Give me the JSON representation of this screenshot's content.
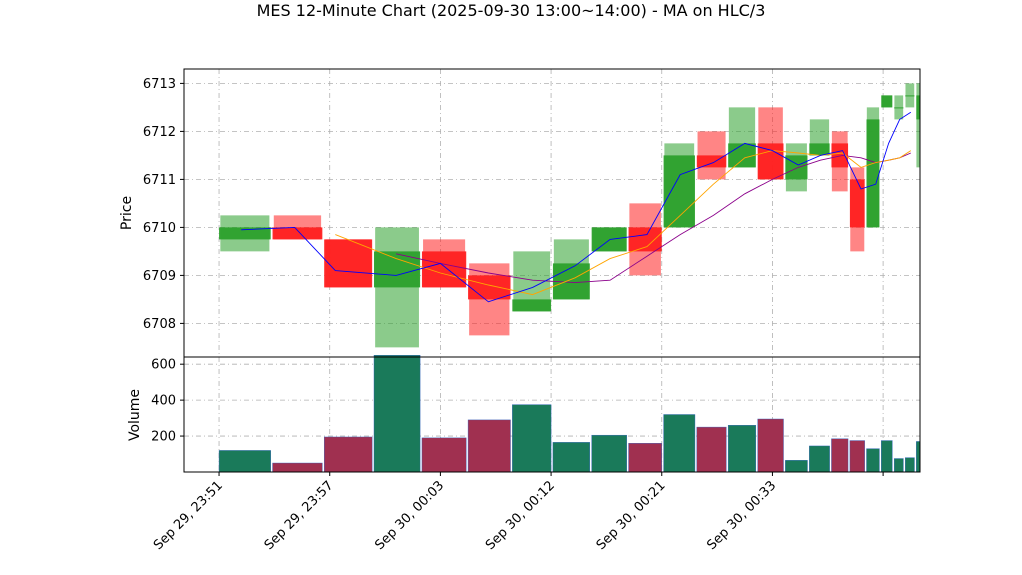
{
  "chart_data": {
    "type": "candlestick",
    "title": "MES 12-Minute Chart (2025-09-30 13:00~14:00) - MA on HLC/3",
    "ylabel_price": "Price",
    "ylabel_volume": "Volume",
    "price_ylim": [
      6707.3,
      6713.3
    ],
    "volume_ylim": [
      0,
      640
    ],
    "price_yticks": [
      6708,
      6709,
      6710,
      6711,
      6712,
      6713
    ],
    "volume_yticks": [
      200,
      400,
      600
    ],
    "xticks": [
      {
        "label": "Sep 29, 23:51",
        "x": 0
      },
      {
        "label": "Sep 29, 23:57",
        "x": 6
      },
      {
        "label": "Sep 30, 00:03",
        "x": 12
      },
      {
        "label": "Sep 30, 00:12",
        "x": 18
      },
      {
        "label": "Sep 30, 00:21",
        "x": 24
      },
      {
        "label": "Sep 30, 00:33",
        "x": 30
      },
      {
        "label": "",
        "x": 36
      }
    ],
    "xlim": [
      -1.9,
      38
    ],
    "bar_width": 1,
    "grid": true,
    "up_color": "#2ca02c",
    "down_color": "#ff2020",
    "volume_up_color": "#1a7a5a",
    "volume_down_color": "#a03050",
    "ma_fast_color": "#0000ff",
    "ma_mid_color": "#ffa500",
    "ma_slow_color": "#8b008b",
    "candles": [
      {
        "x": 0,
        "w": 2.8,
        "open": 6709.75,
        "high": 6710.25,
        "low": 6709.5,
        "close": 6710.0,
        "volume": 120
      },
      {
        "x": 2.9,
        "w": 2.7,
        "open": 6710.0,
        "high": 6710.25,
        "low": 6709.75,
        "close": 6709.75,
        "volume": 50
      },
      {
        "x": 5.7,
        "w": 2.6,
        "open": 6709.75,
        "high": 6709.75,
        "low": 6708.75,
        "close": 6708.75,
        "volume": 195
      },
      {
        "x": 8.4,
        "w": 2.5,
        "open": 6708.75,
        "high": 6710.0,
        "low": 6707.5,
        "close": 6709.5,
        "volume": 650
      },
      {
        "x": 11.0,
        "w": 2.4,
        "open": 6709.5,
        "high": 6709.75,
        "low": 6708.75,
        "close": 6708.75,
        "volume": 190
      },
      {
        "x": 13.5,
        "w": 2.3,
        "open": 6709.0,
        "high": 6709.25,
        "low": 6707.75,
        "close": 6708.5,
        "volume": 290
      },
      {
        "x": 15.9,
        "w": 2.1,
        "open": 6708.25,
        "high": 6709.5,
        "low": 6708.25,
        "close": 6708.5,
        "volume": 375
      },
      {
        "x": 18.1,
        "w": 2.0,
        "open": 6708.5,
        "high": 6709.75,
        "low": 6708.5,
        "close": 6709.25,
        "volume": 165
      },
      {
        "x": 20.2,
        "w": 1.9,
        "open": 6709.5,
        "high": 6710.0,
        "low": 6709.5,
        "close": 6710.0,
        "volume": 205
      },
      {
        "x": 22.2,
        "w": 1.8,
        "open": 6710.0,
        "high": 6710.5,
        "low": 6709.0,
        "close": 6709.5,
        "volume": 160
      },
      {
        "x": 24.1,
        "w": 1.7,
        "open": 6710.0,
        "high": 6711.75,
        "low": 6710.0,
        "close": 6711.5,
        "volume": 320
      },
      {
        "x": 25.9,
        "w": 1.6,
        "open": 6711.5,
        "high": 6712.0,
        "low": 6711.0,
        "close": 6711.25,
        "volume": 250
      },
      {
        "x": 27.6,
        "w": 1.5,
        "open": 6711.25,
        "high": 6712.5,
        "low": 6711.25,
        "close": 6711.75,
        "volume": 260
      },
      {
        "x": 29.2,
        "w": 1.4,
        "open": 6711.75,
        "high": 6712.5,
        "low": 6711.0,
        "close": 6711.0,
        "volume": 295
      },
      {
        "x": 30.7,
        "w": 1.2,
        "open": 6711.0,
        "high": 6711.75,
        "low": 6710.75,
        "close": 6711.5,
        "volume": 65
      },
      {
        "x": 32.0,
        "w": 1.1,
        "open": 6711.5,
        "high": 6712.25,
        "low": 6711.5,
        "close": 6711.75,
        "volume": 145
      },
      {
        "x": 33.2,
        "w": 0.9,
        "open": 6711.75,
        "high": 6712.0,
        "low": 6710.75,
        "close": 6711.25,
        "volume": 185
      },
      {
        "x": 34.2,
        "w": 0.8,
        "open": 6711.0,
        "high": 6711.25,
        "low": 6709.5,
        "close": 6710.0,
        "volume": 175
      },
      {
        "x": 35.1,
        "w": 0.7,
        "open": 6710.0,
        "high": 6712.5,
        "low": 6710.0,
        "close": 6712.25,
        "volume": 130
      },
      {
        "x": 35.9,
        "w": 0.6,
        "open": 6712.5,
        "high": 6712.75,
        "low": 6712.5,
        "close": 6712.75,
        "volume": 175
      },
      {
        "x": 36.6,
        "w": 0.5,
        "open": 6712.5,
        "high": 6712.75,
        "low": 6712.25,
        "close": 6712.5,
        "volume": 75
      },
      {
        "x": 37.2,
        "w": 0.5,
        "open": 6712.75,
        "high": 6713.0,
        "low": 6712.5,
        "close": 6712.75,
        "volume": 80
      },
      {
        "x": 37.8,
        "w": 0.2,
        "open": 6712.25,
        "high": 6713.0,
        "low": 6711.25,
        "close": 6712.75,
        "volume": 170
      }
    ],
    "ma_fast": [
      [
        1.2,
        6709.95
      ],
      [
        4.1,
        6710.0
      ],
      [
        6.3,
        6709.1
      ],
      [
        9.6,
        6709.0
      ],
      [
        12.0,
        6709.25
      ],
      [
        14.6,
        6708.45
      ],
      [
        17.0,
        6708.75
      ],
      [
        19.3,
        6709.2
      ],
      [
        21.2,
        6709.75
      ],
      [
        23.2,
        6709.85
      ],
      [
        25.0,
        6711.1
      ],
      [
        26.8,
        6711.35
      ],
      [
        28.5,
        6711.75
      ],
      [
        30.0,
        6711.6
      ],
      [
        31.4,
        6711.3
      ],
      [
        32.6,
        6711.5
      ],
      [
        33.8,
        6711.6
      ],
      [
        34.8,
        6710.8
      ],
      [
        35.6,
        6710.9
      ],
      [
        36.3,
        6711.75
      ],
      [
        36.9,
        6712.25
      ],
      [
        37.5,
        6712.4
      ]
    ],
    "ma_mid": [
      [
        6.3,
        6709.85
      ],
      [
        9.6,
        6709.35
      ],
      [
        12.0,
        6709.05
      ],
      [
        14.6,
        6708.8
      ],
      [
        17.0,
        6708.6
      ],
      [
        19.3,
        6708.95
      ],
      [
        21.2,
        6709.35
      ],
      [
        23.2,
        6709.6
      ],
      [
        25.0,
        6710.25
      ],
      [
        26.8,
        6710.9
      ],
      [
        28.5,
        6711.45
      ],
      [
        30.0,
        6711.6
      ],
      [
        31.4,
        6711.55
      ],
      [
        32.6,
        6711.5
      ],
      [
        33.8,
        6711.55
      ],
      [
        34.8,
        6711.25
      ],
      [
        35.6,
        6711.35
      ],
      [
        36.3,
        6711.4
      ],
      [
        36.9,
        6711.45
      ],
      [
        37.5,
        6711.6
      ]
    ],
    "ma_slow": [
      [
        9.6,
        6709.45
      ],
      [
        12.0,
        6709.25
      ],
      [
        14.6,
        6709.05
      ],
      [
        17.0,
        6708.9
      ],
      [
        19.3,
        6708.85
      ],
      [
        21.2,
        6708.9
      ],
      [
        23.2,
        6709.4
      ],
      [
        25.0,
        6709.85
      ],
      [
        26.8,
        6710.25
      ],
      [
        28.5,
        6710.7
      ],
      [
        30.0,
        6711.0
      ],
      [
        31.4,
        6711.25
      ],
      [
        32.6,
        6711.4
      ],
      [
        33.8,
        6711.5
      ],
      [
        34.8,
        6711.45
      ],
      [
        35.6,
        6711.35
      ],
      [
        36.3,
        6711.4
      ],
      [
        36.9,
        6711.45
      ],
      [
        37.5,
        6711.55
      ]
    ]
  }
}
